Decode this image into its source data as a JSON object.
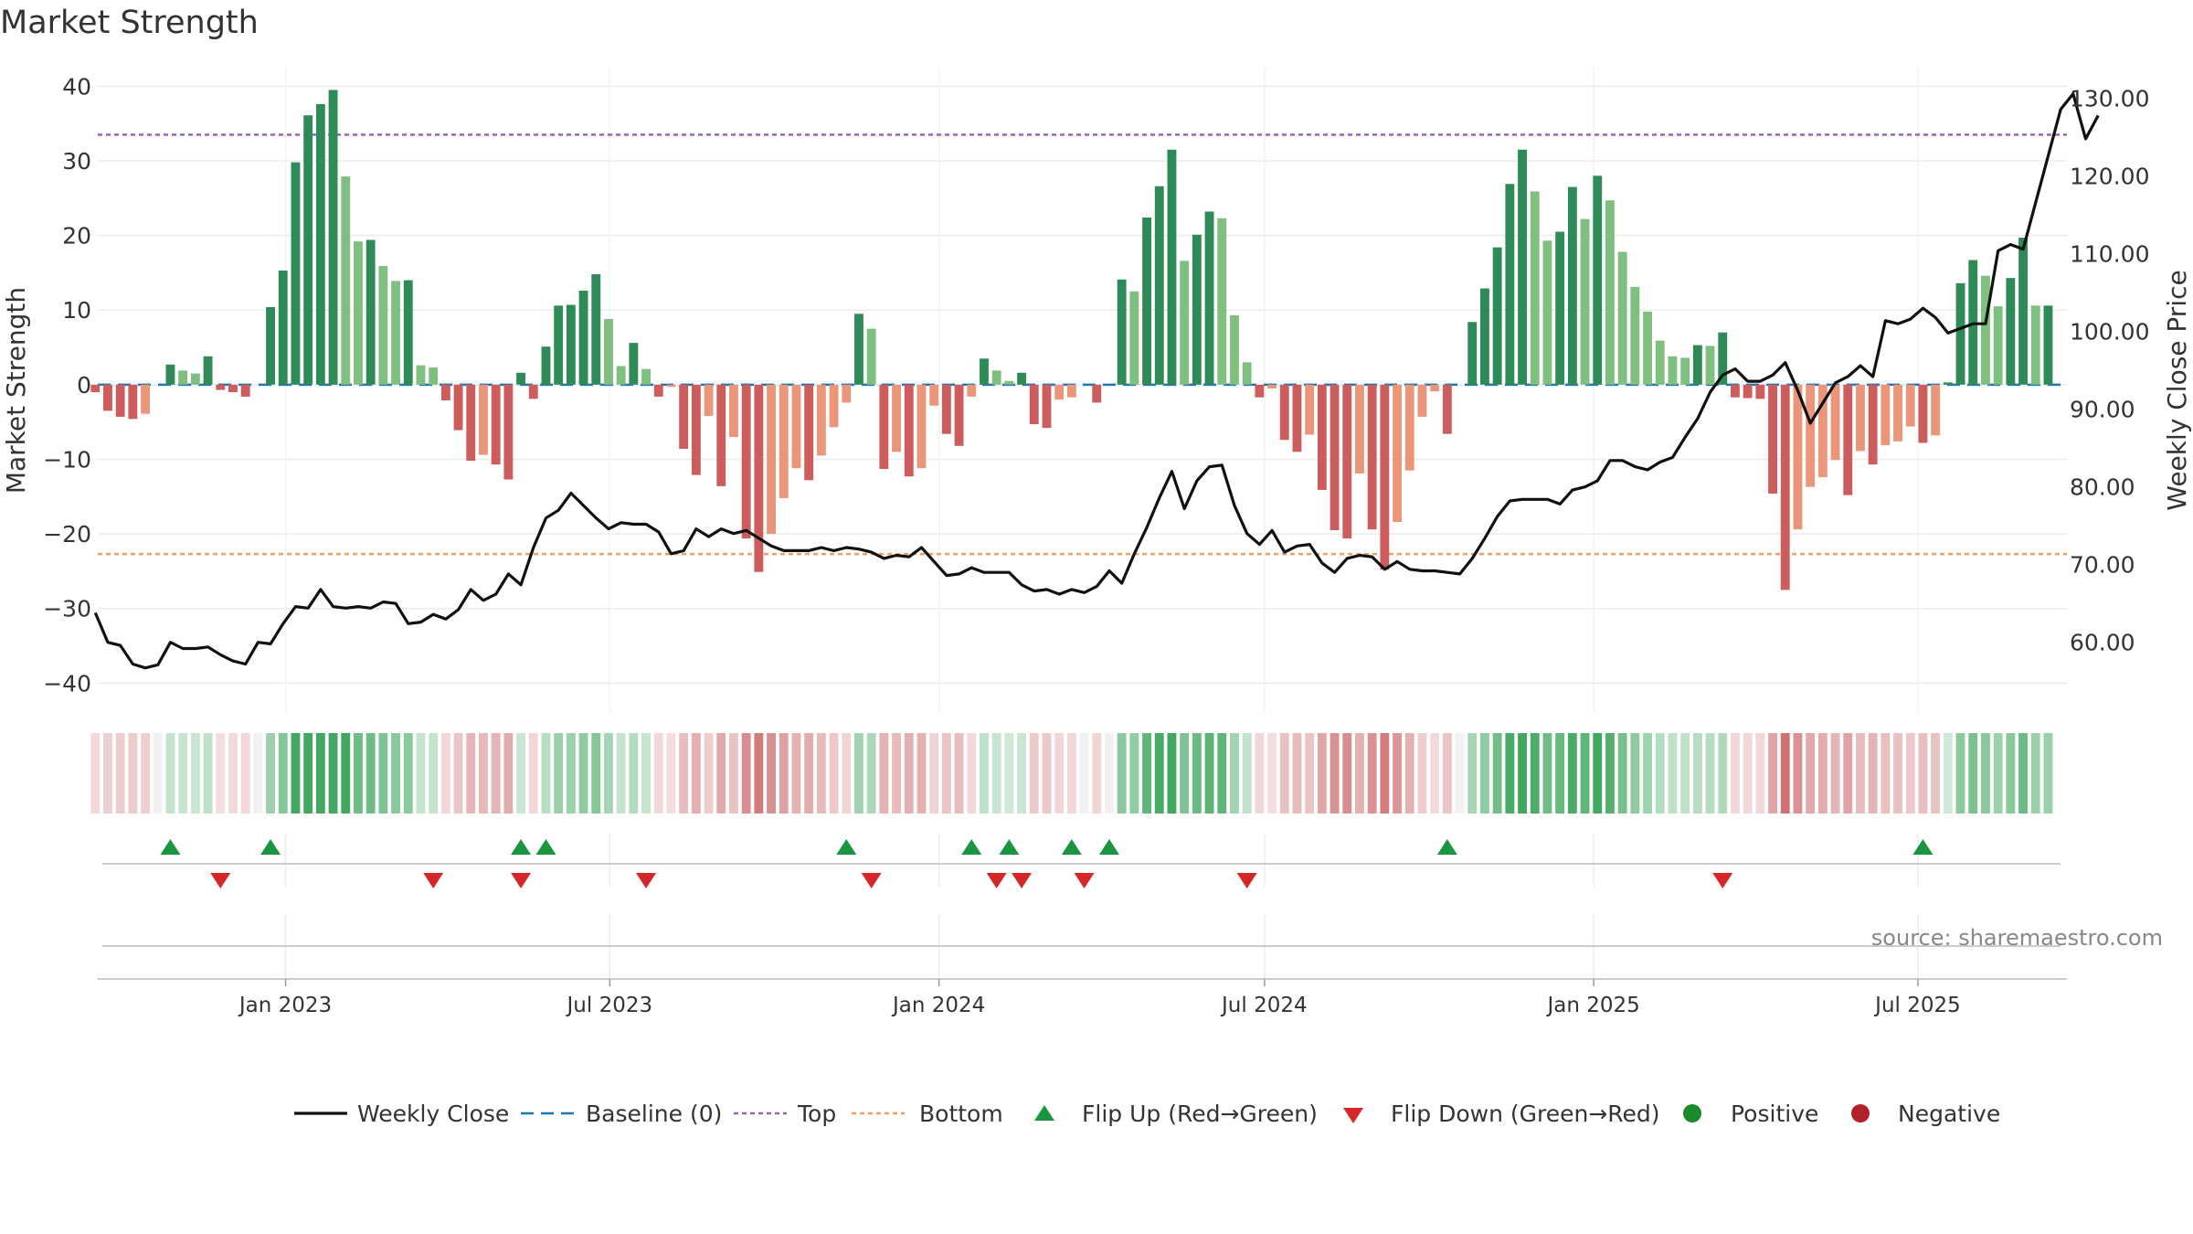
{
  "chart_data": {
    "type": "bar",
    "title": "Market Strength",
    "ylabel": "Market Strength",
    "y2label": "Weekly Close Price",
    "ylim": [
      -44,
      42
    ],
    "y2lim": [
      50.9,
      133.5
    ],
    "yticks": [
      40,
      30,
      20,
      10,
      0,
      -10,
      -20,
      -30,
      -40
    ],
    "ytick_labels": [
      "40",
      "30",
      "20",
      "10",
      "0",
      "−10",
      "−20",
      "−30",
      "−40"
    ],
    "y2ticks": [
      130,
      120,
      110,
      100,
      90,
      80,
      70,
      60
    ],
    "y2tick_labels": [
      "130.00",
      "120.00",
      "110.00",
      "100.00",
      "90.00",
      "80.00",
      "70.00",
      "60.00"
    ],
    "xlim": [
      0.2,
      157.5
    ],
    "xticks": [
      15.2,
      41.1,
      67.4,
      93.4,
      119.7,
      145.6
    ],
    "xtick_labels": [
      "Jan 2023",
      "Jul 2023",
      "Jan 2024",
      "Jul 2024",
      "Jan 2025",
      "Jul 2025"
    ],
    "top_line": 33.5,
    "bottom_line": -22.7,
    "grid": true,
    "legend_position": "bottom-center",
    "source_text": "source: sharemaestro.com",
    "strength": [
      -1.0,
      -3.5,
      -4.3,
      -4.6,
      -3.9,
      0,
      2.7,
      1.9,
      1.5,
      3.8,
      -0.7,
      -1.0,
      -1.6,
      0,
      10.4,
      15.3,
      29.8,
      36.1,
      37.6,
      39.5,
      27.9,
      19.2,
      19.4,
      15.9,
      13.9,
      14.0,
      2.6,
      2.3,
      -2.1,
      -6.1,
      -10.2,
      -9.4,
      -10.7,
      -12.7,
      1.6,
      -1.9,
      5.1,
      10.6,
      10.7,
      12.6,
      14.8,
      8.8,
      2.5,
      5.6,
      2.1,
      -1.6,
      -0.3,
      -8.6,
      -12.1,
      -4.2,
      -13.6,
      -7.0,
      -20.6,
      -25.1,
      -20.0,
      -15.2,
      -11.2,
      -12.8,
      -9.5,
      -5.7,
      -2.4,
      9.5,
      7.5,
      -11.3,
      -9.0,
      -12.3,
      -11.2,
      -2.8,
      -6.6,
      -8.2,
      -1.6,
      3.5,
      1.9,
      0.5,
      1.6,
      -5.3,
      -5.8,
      -2.0,
      -1.7,
      0,
      -2.4,
      0,
      14.1,
      12.5,
      22.4,
      26.6,
      31.5,
      16.6,
      20.1,
      23.2,
      22.3,
      9.3,
      3.0,
      -1.7,
      -0.5,
      -7.4,
      -9.0,
      -6.7,
      -14.1,
      -19.5,
      -20.6,
      -11.9,
      -19.4,
      -24.8,
      -18.4,
      -11.5,
      -4.3,
      -0.9,
      -6.6,
      0,
      8.4,
      12.9,
      18.4,
      26.9,
      31.5,
      25.9,
      19.3,
      20.5,
      26.5,
      22.2,
      28.0,
      24.7,
      17.8,
      13.1,
      9.8,
      5.9,
      3.8,
      3.6,
      5.3,
      5.2,
      7.0,
      -1.7,
      -1.8,
      -1.9,
      -14.6,
      -27.5,
      -19.4,
      -13.7,
      -12.4,
      -10.1,
      -14.8,
      -8.9,
      -10.7,
      -8.1,
      -7.6,
      -5.6,
      -7.8,
      -6.8,
      0.3,
      13.6,
      16.7,
      14.6,
      10.5,
      14.3,
      19.7,
      10.6,
      10.6
    ],
    "close": [
      63.8,
      60.0,
      59.6,
      57.2,
      56.7,
      57.1,
      60.0,
      59.2,
      59.2,
      59.4,
      58.4,
      57.6,
      57.2,
      60.0,
      59.8,
      62.4,
      64.6,
      64.4,
      66.8,
      64.6,
      64.4,
      64.6,
      64.4,
      65.2,
      65.0,
      62.4,
      62.6,
      63.6,
      63.0,
      64.2,
      66.8,
      65.4,
      66.2,
      68.8,
      67.4,
      72.2,
      76.0,
      77.0,
      79.2,
      77.6,
      76.0,
      74.6,
      75.4,
      75.2,
      75.2,
      74.2,
      71.4,
      71.8,
      74.6,
      73.6,
      74.6,
      74.0,
      74.4,
      73.4,
      72.4,
      71.8,
      71.8,
      71.8,
      72.2,
      71.8,
      72.2,
      72.0,
      71.6,
      70.8,
      71.2,
      71.0,
      72.2,
      70.4,
      68.6,
      68.8,
      69.6,
      69.0,
      69.0,
      69.0,
      67.4,
      66.6,
      66.8,
      66.2,
      66.8,
      66.4,
      67.2,
      69.2,
      67.6,
      71.4,
      74.8,
      78.6,
      82.0,
      77.2,
      80.8,
      82.6,
      82.8,
      77.6,
      74.0,
      72.6,
      74.4,
      71.6,
      72.4,
      72.6,
      70.2,
      69.0,
      70.8,
      71.2,
      71.0,
      69.4,
      70.4,
      69.4,
      69.2,
      69.2,
      69.0,
      68.8,
      70.8,
      73.4,
      76.2,
      78.2,
      78.4,
      78.4,
      78.4,
      77.8,
      79.6,
      80.0,
      80.8,
      83.4,
      83.4,
      82.6,
      82.2,
      83.2,
      83.8,
      86.4,
      88.8,
      92.2,
      94.4,
      95.2,
      93.6,
      93.6,
      94.4,
      96.0,
      92.4,
      88.2,
      90.8,
      93.4,
      94.2,
      95.6,
      94.2,
      101.4,
      101.0,
      101.6,
      103.0,
      101.8,
      99.8,
      100.4,
      101.0,
      101.0,
      110.4,
      111.2,
      110.6,
      116.6,
      122.6,
      128.6,
      130.6,
      124.8,
      127.8
    ],
    "flip_up": [
      6,
      14,
      34,
      36,
      60,
      70,
      73,
      78,
      81,
      108,
      146
    ],
    "flip_down": [
      10,
      27,
      34,
      44,
      62,
      72,
      74,
      79,
      92,
      130
    ],
    "legend": [
      {
        "label": "Weekly Close",
        "marker": "line-solid",
        "color": "#111111"
      },
      {
        "label": "Baseline (0)",
        "marker": "line-dashed",
        "color": "#1f77b4"
      },
      {
        "label": "Top",
        "marker": "line-dotted",
        "color": "#9467bd"
      },
      {
        "label": "Bottom",
        "marker": "line-dotted",
        "color": "#f0a060"
      },
      {
        "label": "Flip Up (Red→Green)",
        "marker": "triangle-up",
        "color": "#1a9641"
      },
      {
        "label": "Flip Down (Green→Red)",
        "marker": "triangle-down",
        "color": "#d62728"
      },
      {
        "label": "Positive",
        "marker": "circle",
        "color": "#1a8a2a"
      },
      {
        "label": "Negative",
        "marker": "circle",
        "color": "#b2202a"
      }
    ]
  },
  "colors": {
    "pos_strong": "#2e8b57",
    "pos_weak": "#7fbf7f",
    "neg_strong": "#cd5c5c",
    "neg_weak": "#e9967a",
    "baseline": "#1f77b4",
    "top": "#9467bd",
    "bottom": "#f0a060",
    "close": "#111111"
  }
}
